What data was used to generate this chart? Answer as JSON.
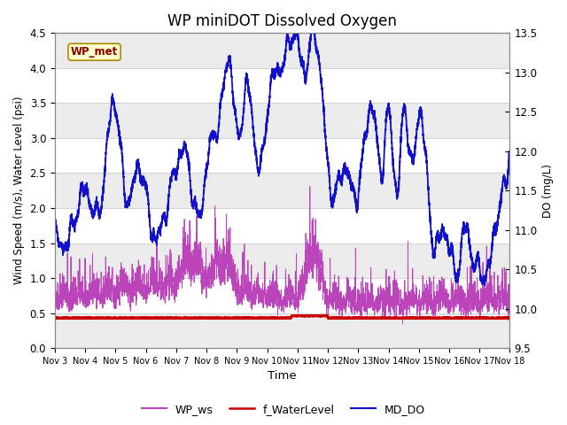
{
  "title": "WP miniDOT Dissolved Oxygen",
  "xlabel": "Time",
  "ylabel_left": "Wind Speed (m/s), Water Level (psi)",
  "ylabel_right": "DO (mg/L)",
  "ylim_left": [
    0.0,
    4.5
  ],
  "ylim_right": [
    9.5,
    13.5
  ],
  "yticks_left": [
    0.0,
    0.5,
    1.0,
    1.5,
    2.0,
    2.5,
    3.0,
    3.5,
    4.0,
    4.5
  ],
  "yticks_right": [
    9.5,
    10.0,
    10.5,
    11.0,
    11.5,
    12.0,
    12.5,
    13.0,
    13.5
  ],
  "color_ws": "#BB44BB",
  "color_wl": "#CC0000",
  "color_do": "#1111CC",
  "annotation_text": "WP_met",
  "annotation_bg": "#FFFFCC",
  "annotation_border": "#AA8800",
  "annotation_text_color": "#880000",
  "legend_labels": [
    "WP_ws",
    "f_WaterLevel",
    "MD_DO"
  ],
  "bg_stripe1": "#EBEBEB",
  "bg_white": "#FFFFFF",
  "title_fontsize": 12,
  "xtick_labels": [
    "Nov 3",
    "Nov 4",
    "Nov 5",
    "Nov 6",
    "Nov 7",
    "Nov 8",
    "Nov 9",
    "Nov 10",
    "Nov 11",
    "Nov 12",
    "Nov 13",
    "Nov 14",
    "Nov 15",
    "Nov 16",
    "Nov 17",
    "Nov 18"
  ]
}
